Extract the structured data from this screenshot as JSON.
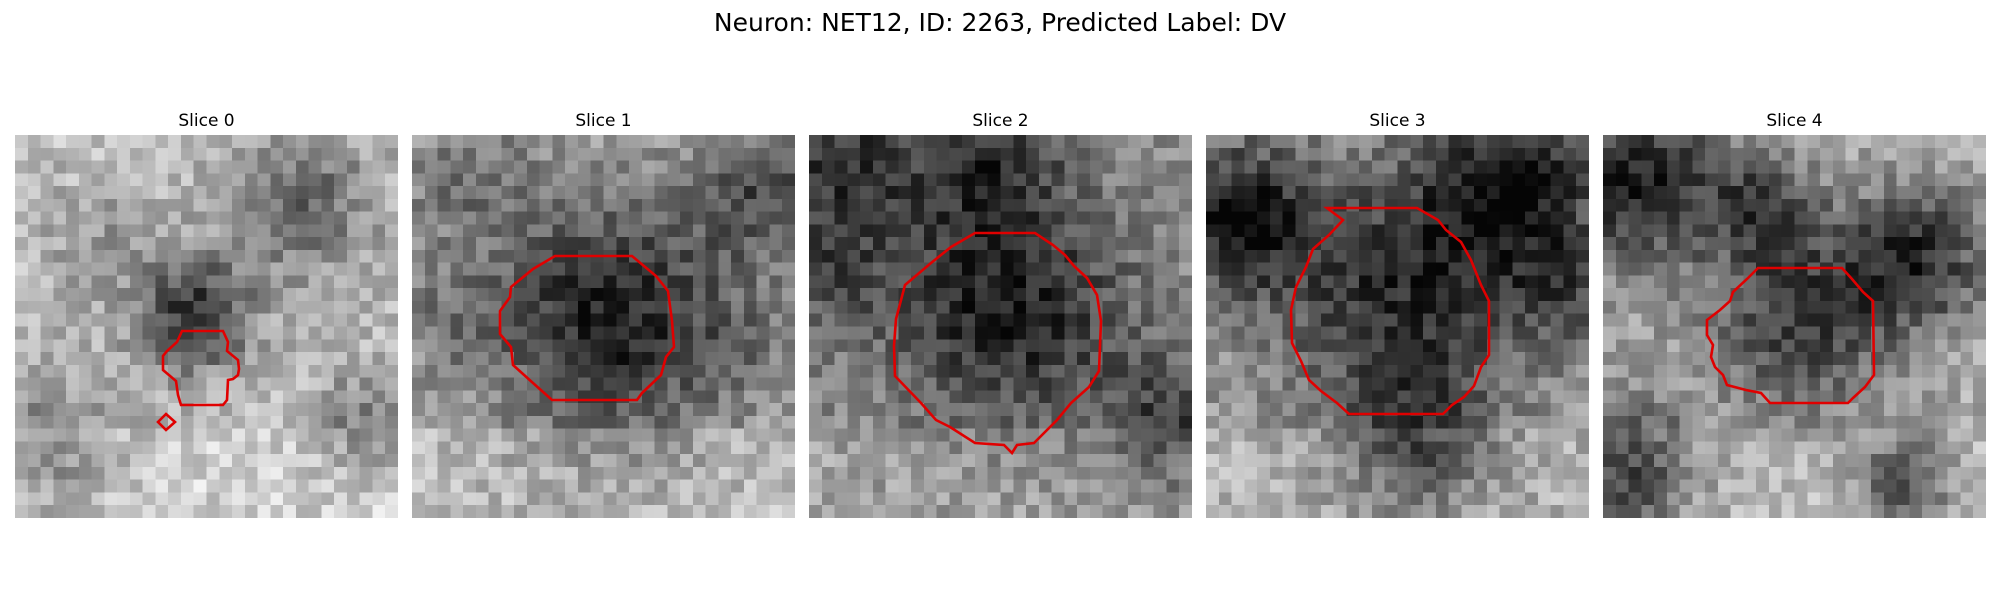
{
  "figure": {
    "title": "Neuron: NET12, ID: 2263, Predicted Label: DV"
  },
  "contour_color": "#e00000",
  "slices": [
    {
      "label": "Slice 0"
    },
    {
      "label": "Slice 1"
    },
    {
      "label": "Slice 2"
    },
    {
      "label": "Slice 3"
    },
    {
      "label": "Slice 4"
    }
  ]
}
